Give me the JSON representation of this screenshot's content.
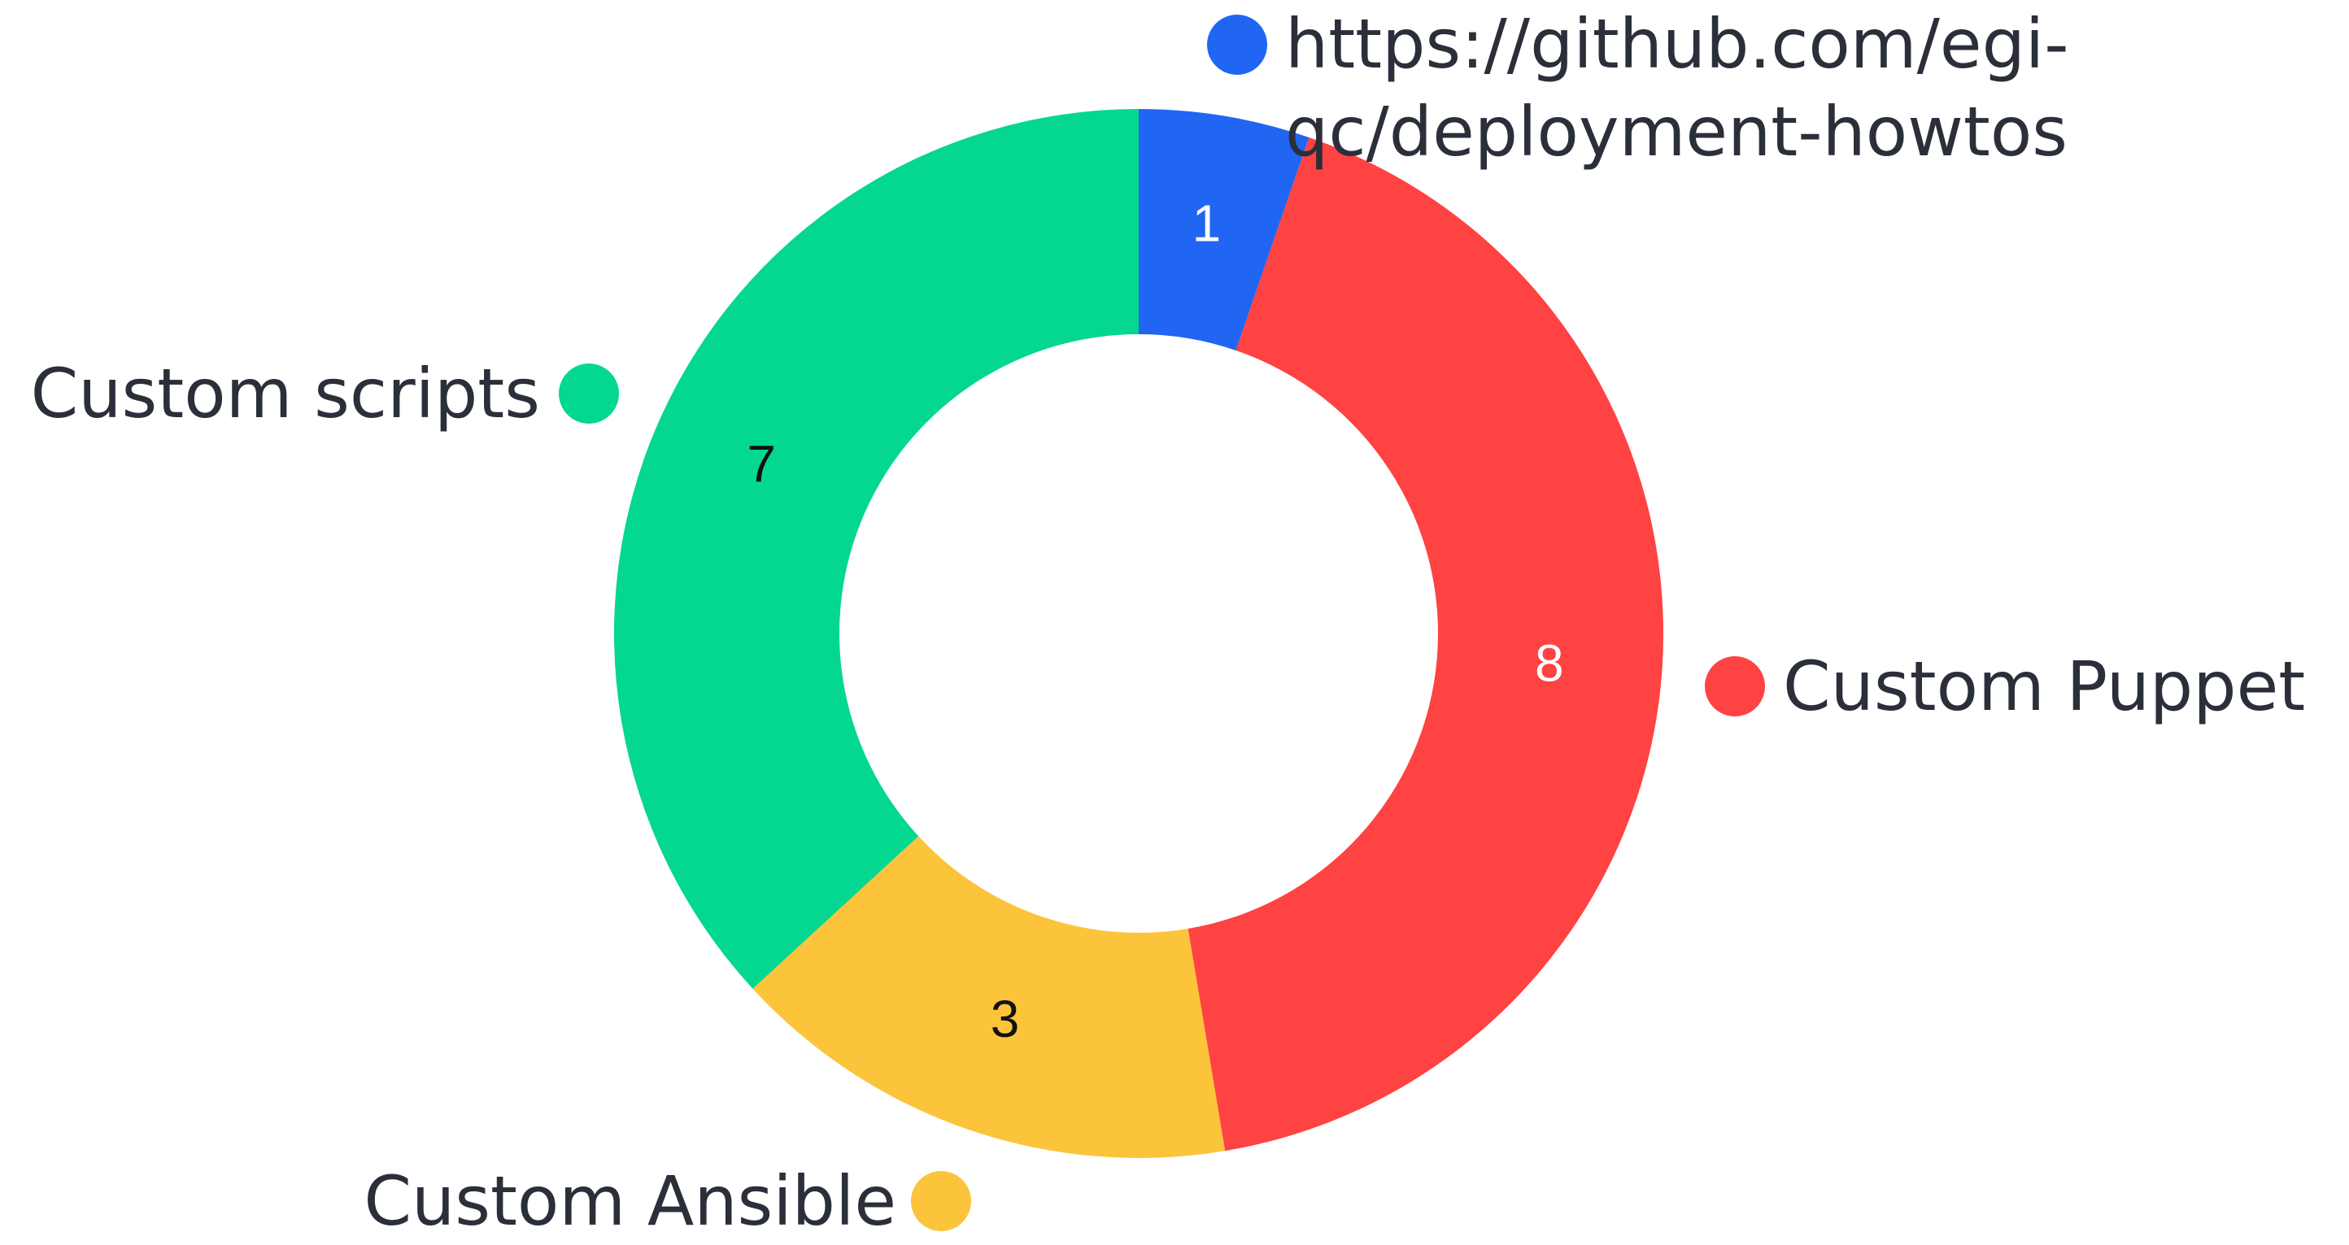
{
  "chart_data": {
    "type": "donut",
    "categories": [
      "https://github.com/egi-qc/deployment-howtos",
      "Custom Puppet",
      "Custom Ansible",
      "Custom scripts"
    ],
    "values": [
      1,
      8,
      3,
      7
    ],
    "colors": [
      "#2165f3",
      "#ff4242",
      "#fbc43b",
      "#04d78f"
    ],
    "value_label_colors": [
      "#ffffff",
      "#ffffff",
      "#111111",
      "#111111"
    ]
  }
}
